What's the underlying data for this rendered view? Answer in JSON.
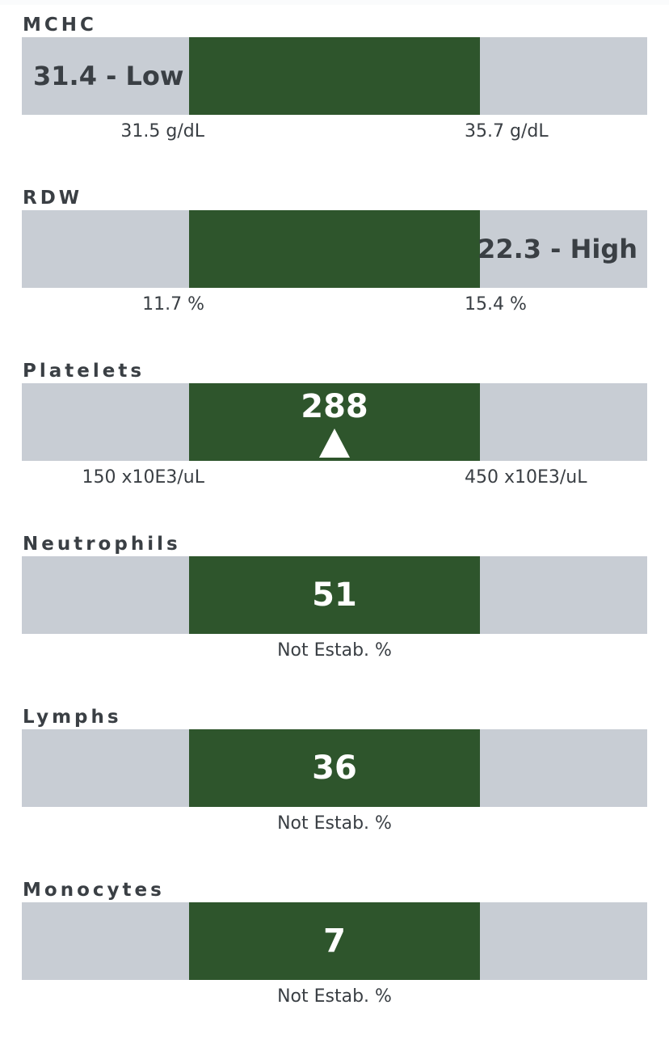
{
  "results": [
    {
      "name": "MCHC",
      "value": "31.4 - Low",
      "low_bound": "31.5 g/dL",
      "high_bound": "35.7 g/dL"
    },
    {
      "name": "RDW",
      "value": "22.3 - High",
      "low_bound": "11.7 %",
      "high_bound": "15.4 %"
    },
    {
      "name": "Platelets",
      "value": "288",
      "low_bound": "150 x10E3/uL",
      "high_bound": "450 x10E3/uL",
      "marker_icon": "triangle-up-icon"
    },
    {
      "name": "Neutrophils",
      "value": "51",
      "range_note": "Not Estab. %"
    },
    {
      "name": "Lymphs",
      "value": "36",
      "range_note": "Not Estab. %"
    },
    {
      "name": "Monocytes",
      "value": "7",
      "range_note": "Not Estab. %"
    }
  ],
  "colors": {
    "normal_range": "#2e552c",
    "track": "#c8cdd4",
    "text": "#3a3f44"
  }
}
